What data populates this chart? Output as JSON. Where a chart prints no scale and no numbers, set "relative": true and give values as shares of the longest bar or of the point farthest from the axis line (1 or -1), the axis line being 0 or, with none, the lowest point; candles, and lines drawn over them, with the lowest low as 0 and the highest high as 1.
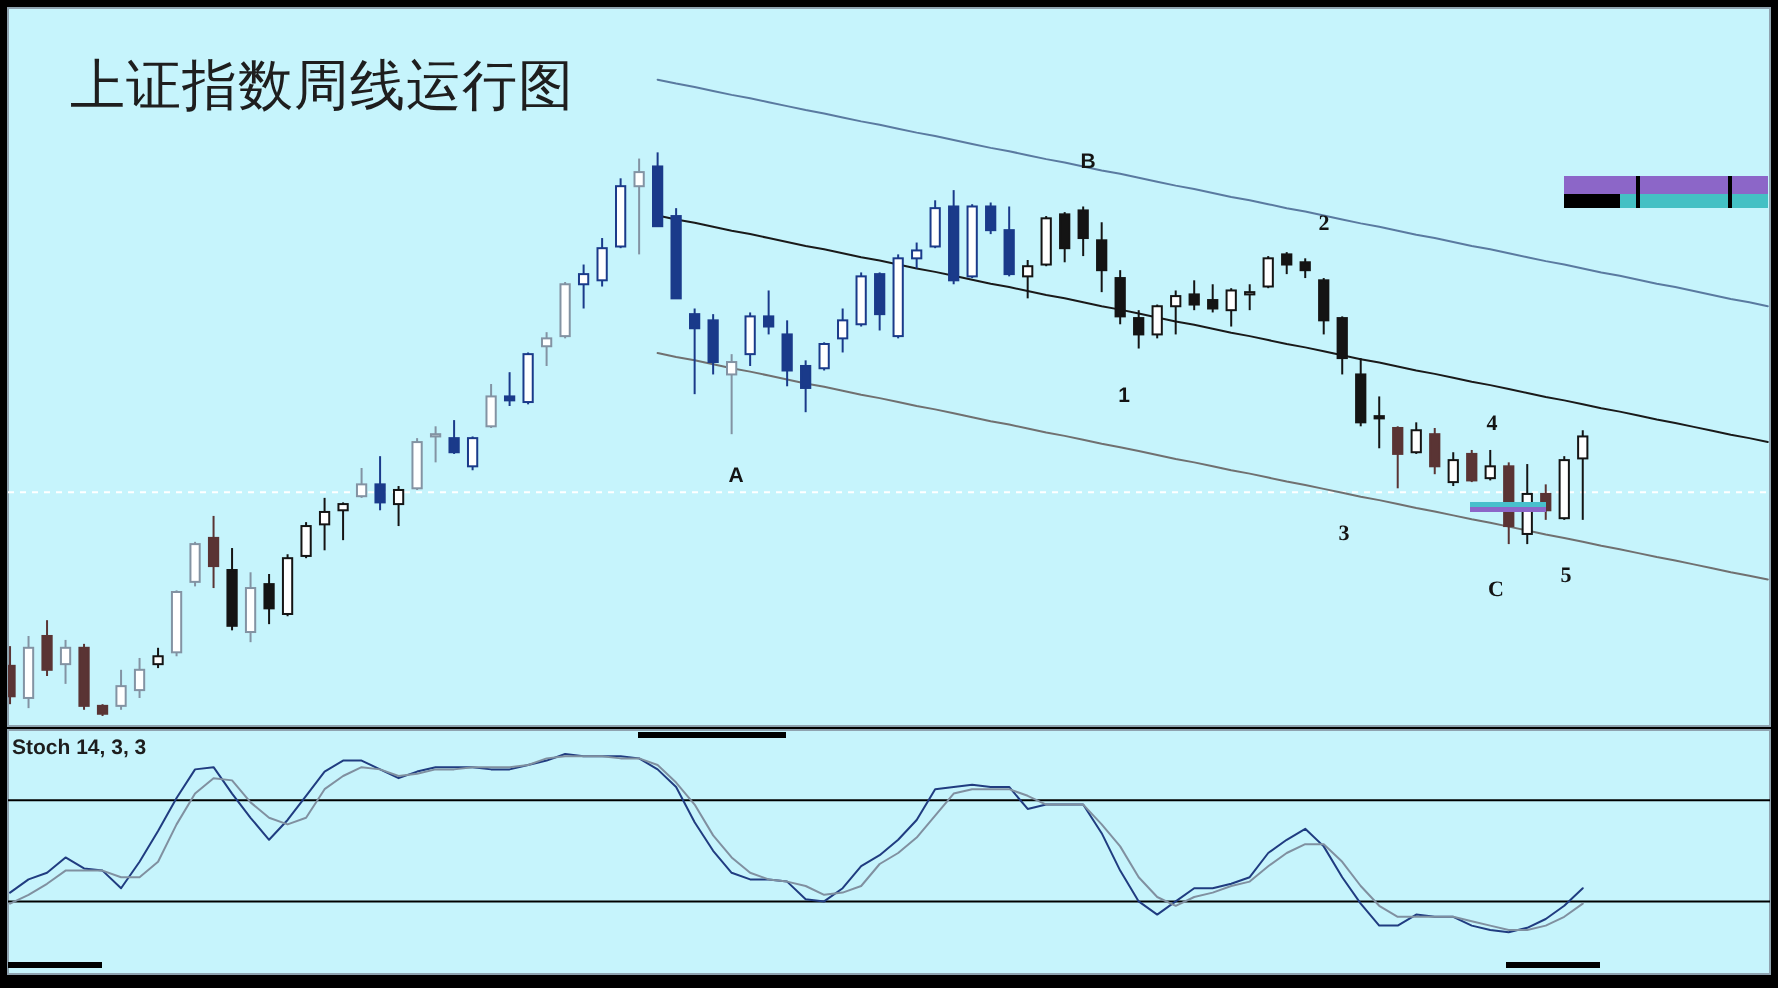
{
  "chart_data": [
    {
      "type": "candlestick",
      "title": "上证指数周线运行图",
      "relative": true,
      "categories": [
        null,
        null,
        null,
        null,
        null,
        null,
        null,
        null,
        null,
        null,
        null,
        null,
        null,
        null,
        null,
        null,
        null,
        null,
        null,
        null,
        null,
        null,
        null,
        null,
        null,
        null,
        null,
        null,
        null,
        null,
        null,
        null,
        null,
        null,
        null,
        null,
        null,
        null,
        null,
        null,
        null,
        null,
        null,
        null,
        null,
        null,
        null,
        null,
        null,
        null,
        null,
        null,
        null,
        null,
        null,
        null,
        null,
        null,
        null,
        null,
        null,
        null,
        null,
        null,
        null,
        null,
        null,
        null,
        null,
        null,
        null,
        null,
        null,
        null,
        null,
        null,
        null,
        null,
        null,
        null,
        null,
        null,
        null,
        null,
        null,
        null,
        null,
        null,
        null,
        null,
        null,
        null,
        null,
        null,
        null,
        null
      ],
      "ohlc": [
        [
          0.089,
          0.124,
          0.021,
          0.035
        ],
        [
          0.032,
          0.142,
          0.014,
          0.121
        ],
        [
          0.142,
          0.17,
          0.071,
          0.082
        ],
        [
          0.092,
          0.135,
          0.057,
          0.121
        ],
        [
          0.121,
          0.128,
          0.011,
          0.018
        ],
        [
          0.018,
          0.021,
          0,
          0.004
        ],
        [
          0.018,
          0.082,
          0.011,
          0.053
        ],
        [
          0.046,
          0.103,
          0.032,
          0.082
        ],
        [
          0.092,
          0.121,
          0.085,
          0.106
        ],
        [
          0.113,
          0.223,
          0.106,
          0.22
        ],
        [
          0.238,
          0.309,
          0.23,
          0.305
        ],
        [
          0.316,
          0.355,
          0.227,
          0.266
        ],
        [
          0.259,
          0.298,
          0.152,
          0.16
        ],
        [
          0.149,
          0.255,
          0.131,
          0.227
        ],
        [
          0.234,
          0.252,
          0.163,
          0.191
        ],
        [
          0.181,
          0.287,
          0.177,
          0.28
        ],
        [
          0.284,
          0.344,
          0.28,
          0.337
        ],
        [
          0.34,
          0.387,
          0.294,
          0.362
        ],
        [
          0.365,
          0.379,
          0.312,
          0.376
        ],
        [
          0.39,
          0.44,
          0.387,
          0.411
        ],
        [
          0.411,
          0.461,
          0.365,
          0.379
        ],
        [
          0.376,
          0.408,
          0.337,
          0.401
        ],
        [
          0.404,
          0.493,
          0.401,
          0.486
        ],
        [
          0.496,
          0.514,
          0.45,
          0.5
        ],
        [
          0.493,
          0.525,
          0.465,
          0.468
        ],
        [
          0.443,
          0.496,
          0.436,
          0.493
        ],
        [
          0.514,
          0.589,
          0.511,
          0.567
        ],
        [
          0.567,
          0.61,
          0.55,
          0.56
        ],
        [
          0.557,
          0.645,
          0.553,
          0.642
        ],
        [
          0.656,
          0.681,
          0.621,
          0.67
        ],
        [
          0.674,
          0.77,
          0.67,
          0.766
        ],
        [
          0.766,
          0.801,
          0.723,
          0.784
        ],
        [
          0.773,
          0.848,
          0.762,
          0.83
        ],
        [
          0.833,
          0.954,
          0.83,
          0.94
        ],
        [
          0.94,
          0.989,
          0.819,
          0.965
        ],
        [
          0.975,
          1,
          0.869,
          0.869
        ],
        [
          0.887,
          0.901,
          0.741,
          0.741
        ],
        [
          0.713,
          0.723,
          0.571,
          0.688
        ],
        [
          0.702,
          0.713,
          0.606,
          0.628
        ],
        [
          0.606,
          0.642,
          0.5,
          0.628
        ],
        [
          0.642,
          0.716,
          0.621,
          0.709
        ],
        [
          0.709,
          0.755,
          0.677,
          0.691
        ],
        [
          0.677,
          0.702,
          0.585,
          0.613
        ],
        [
          0.621,
          0.631,
          0.539,
          0.582
        ],
        [
          0.617,
          0.663,
          0.613,
          0.66
        ],
        [
          0.67,
          0.723,
          0.645,
          0.702
        ],
        [
          0.695,
          0.787,
          0.691,
          0.78
        ],
        [
          0.784,
          0.787,
          0.684,
          0.713
        ],
        [
          0.674,
          0.819,
          0.67,
          0.812
        ],
        [
          0.812,
          0.84,
          0.794,
          0.826
        ],
        [
          0.833,
          0.915,
          0.83,
          0.901
        ],
        [
          0.904,
          0.933,
          0.766,
          0.773
        ],
        [
          0.78,
          0.908,
          0.777,
          0.904
        ],
        [
          0.904,
          0.911,
          0.855,
          0.862
        ],
        [
          0.862,
          0.904,
          0.78,
          0.784
        ],
        [
          0.78,
          0.809,
          0.741,
          0.798
        ],
        [
          0.801,
          0.887,
          0.798,
          0.883
        ],
        [
          0.89,
          0.894,
          0.805,
          0.83
        ],
        [
          0.897,
          0.904,
          0.816,
          0.848
        ],
        [
          0.844,
          0.876,
          0.752,
          0.791
        ],
        [
          0.777,
          0.791,
          0.695,
          0.709
        ],
        [
          0.706,
          0.72,
          0.652,
          0.677
        ],
        [
          0.677,
          0.73,
          0.67,
          0.727
        ],
        [
          0.727,
          0.755,
          0.677,
          0.745
        ],
        [
          0.748,
          0.773,
          0.72,
          0.73
        ],
        [
          0.738,
          0.766,
          0.716,
          0.723
        ],
        [
          0.72,
          0.759,
          0.691,
          0.755
        ],
        [
          0.748,
          0.766,
          0.72,
          0.752
        ],
        [
          0.762,
          0.816,
          0.759,
          0.812
        ],
        [
          0.819,
          0.823,
          0.784,
          0.801
        ],
        [
          0.805,
          0.812,
          0.777,
          0.791
        ],
        [
          0.773,
          0.777,
          0.677,
          0.702
        ],
        [
          0.706,
          0.709,
          0.606,
          0.635
        ],
        [
          0.606,
          0.635,
          0.514,
          0.521
        ],
        [
          0.532,
          0.567,
          0.475,
          0.528
        ],
        [
          0.511,
          0.514,
          0.404,
          0.465
        ],
        [
          0.468,
          0.521,
          0.465,
          0.507
        ],
        [
          0.5,
          0.511,
          0.429,
          0.443
        ],
        [
          0.415,
          0.468,
          0.408,
          0.454
        ],
        [
          0.465,
          0.472,
          0.415,
          0.418
        ],
        [
          0.422,
          0.472,
          0.418,
          0.443
        ],
        [
          0.443,
          0.45,
          0.305,
          0.337
        ],
        [
          0.323,
          0.447,
          0.305,
          0.394
        ],
        [
          0.394,
          0.411,
          0.348,
          0.365
        ],
        [
          0.351,
          0.461,
          0.348,
          0.454
        ],
        [
          0.457,
          0.507,
          0.348,
          0.496
        ],
        null,
        null,
        null,
        null,
        null,
        null,
        null,
        null,
        null,
        null
      ],
      "colors": [
        "#5a3434",
        "#8393a3",
        "#5a3434",
        "#8393a3",
        "#5a3434",
        "#5a3434",
        "#8393a3",
        "#8393a3",
        "#141414",
        "#8393a3",
        "#8393a3",
        "#5a3434",
        "#141414",
        "#8393a3",
        "#141414",
        "#141414",
        "#141414",
        "#141414",
        "#141414",
        "#8393a3",
        "#1a3a8a",
        "#141414",
        "#8393a3",
        "#8393a3",
        "#1a3a8a",
        "#1a3a8a",
        "#8393a3",
        "#1a3a8a",
        "#1a3a8a",
        "#8393a3",
        "#8393a3",
        "#1a3a8a",
        "#1a3a8a",
        "#1a3a8a",
        "#8393a3",
        "#1a3a8a",
        "#1a3a8a",
        "#1a3a8a",
        "#1a3a8a",
        "#8393a3",
        "#1a3a8a",
        "#1a3a8a",
        "#1a3a8a",
        "#1a3a8a",
        "#1a3a8a",
        "#1a3a8a",
        "#1a3a8a",
        "#1a3a8a",
        "#1a3a8a",
        "#1a3a8a",
        "#1a3a8a",
        "#1a3a8a",
        "#1a3a8a",
        "#1a3a8a",
        "#1a3a8a",
        "#141414",
        "#141414",
        "#141414",
        "#141414",
        "#141414",
        "#141414",
        "#141414",
        "#141414",
        "#141414",
        "#141414",
        "#141414",
        "#141414",
        "#141414",
        "#141414",
        "#141414",
        "#141414",
        "#141414",
        "#141414",
        "#141414",
        "#141414",
        "#5a3434",
        "#141414",
        "#5a3434",
        "#141414",
        "#5a3434",
        "#141414",
        "#5a3434",
        "#141414",
        "#5a3434",
        "#141414",
        "#141414",
        null,
        null,
        null,
        null,
        null,
        null,
        null,
        null,
        null,
        null
      ],
      "series": [
        {
          "type": "line",
          "color": "#5a7aa0",
          "values": [
            null,
            null,
            null,
            null,
            null,
            null,
            null,
            null,
            null,
            null,
            null,
            null,
            null,
            null,
            null,
            null,
            null,
            null,
            null,
            null,
            null,
            null,
            null,
            null,
            null,
            null,
            null,
            null,
            null,
            null,
            null,
            null,
            null,
            null,
            null,
            1.129,
            1.122,
            1.116,
            1.109,
            1.102,
            1.096,
            1.089,
            1.082,
            1.075,
            1.069,
            1.062,
            1.055,
            1.049,
            1.042,
            1.035,
            1.029,
            1.022,
            1.015,
            1.008,
            1.002,
            0.995,
            0.988,
            0.982,
            0.975,
            0.968,
            0.962,
            0.955,
            0.948,
            0.941,
            0.935,
            0.928,
            0.921,
            0.915,
            0.908,
            0.901,
            0.895,
            0.888,
            0.881,
            0.874,
            0.868,
            0.861,
            0.854,
            0.848,
            0.841,
            0.834,
            0.828,
            0.821,
            0.814,
            0.807,
            0.801,
            0.794,
            0.787,
            0.781,
            0.774,
            0.767,
            0.761,
            0.754,
            0.747,
            0.74,
            0.734,
            0.727
          ]
        },
        {
          "type": "line",
          "color": "#1a1a1a",
          "values": [
            null,
            null,
            null,
            null,
            null,
            null,
            null,
            null,
            null,
            null,
            null,
            null,
            null,
            null,
            null,
            null,
            null,
            null,
            null,
            null,
            null,
            null,
            null,
            null,
            null,
            null,
            null,
            null,
            null,
            null,
            null,
            null,
            null,
            null,
            null,
            0.888,
            0.881,
            0.875,
            0.868,
            0.861,
            0.855,
            0.848,
            0.841,
            0.834,
            0.828,
            0.821,
            0.814,
            0.808,
            0.801,
            0.794,
            0.788,
            0.781,
            0.774,
            0.767,
            0.761,
            0.754,
            0.747,
            0.741,
            0.734,
            0.727,
            0.721,
            0.714,
            0.707,
            0.7,
            0.694,
            0.687,
            0.68,
            0.674,
            0.667,
            0.66,
            0.654,
            0.647,
            0.64,
            0.633,
            0.627,
            0.62,
            0.613,
            0.607,
            0.6,
            0.593,
            0.587,
            0.58,
            0.573,
            0.566,
            0.56,
            0.553,
            0.546,
            0.54,
            0.533,
            0.526,
            0.52,
            0.513,
            0.506,
            0.499,
            0.493,
            0.486
          ]
        },
        {
          "type": "line",
          "color": "#707070",
          "values": [
            null,
            null,
            null,
            null,
            null,
            null,
            null,
            null,
            null,
            null,
            null,
            null,
            null,
            null,
            null,
            null,
            null,
            null,
            null,
            null,
            null,
            null,
            null,
            null,
            null,
            null,
            null,
            null,
            null,
            null,
            null,
            null,
            null,
            null,
            null,
            0.644,
            0.637,
            0.631,
            0.624,
            0.617,
            0.611,
            0.604,
            0.597,
            0.59,
            0.584,
            0.577,
            0.57,
            0.564,
            0.557,
            0.55,
            0.544,
            0.537,
            0.53,
            0.523,
            0.517,
            0.51,
            0.503,
            0.497,
            0.49,
            0.483,
            0.477,
            0.47,
            0.463,
            0.456,
            0.45,
            0.443,
            0.436,
            0.43,
            0.423,
            0.416,
            0.41,
            0.403,
            0.396,
            0.389,
            0.383,
            0.376,
            0.369,
            0.363,
            0.356,
            0.349,
            0.343,
            0.336,
            0.329,
            0.322,
            0.316,
            0.309,
            0.302,
            0.296,
            0.289,
            0.282,
            0.276,
            0.269,
            0.262,
            0.255,
            0.249,
            0.242
          ]
        }
      ],
      "ref_lines": [
        {
          "axis": "y",
          "value": 0.397,
          "color": "#ffffff",
          "line_style": "dashed"
        }
      ],
      "annotations": [
        "A",
        "B",
        "1",
        "2",
        "3",
        "4",
        "C",
        "5"
      ]
    },
    {
      "type": "line",
      "title": "Stoch 14, 3, 3",
      "relative": true,
      "categories": [
        null,
        null,
        null,
        null,
        null,
        null,
        null,
        null,
        null,
        null,
        null,
        null,
        null,
        null,
        null,
        null,
        null,
        null,
        null,
        null,
        null,
        null,
        null,
        null,
        null,
        null,
        null,
        null,
        null,
        null,
        null,
        null,
        null,
        null,
        null,
        null,
        null,
        null,
        null,
        null,
        null,
        null,
        null,
        null,
        null,
        null,
        null,
        null,
        null,
        null,
        null,
        null,
        null,
        null,
        null,
        null,
        null,
        null,
        null,
        null,
        null,
        null,
        null,
        null,
        null,
        null,
        null,
        null,
        null,
        null,
        null,
        null,
        null,
        null,
        null,
        null,
        null,
        null,
        null,
        null,
        null,
        null,
        null,
        null,
        null,
        null,
        null,
        null,
        null,
        null,
        null,
        null,
        null,
        null,
        null,
        null
      ],
      "series": [
        {
          "color": "#203c80",
          "values": [
            0.37,
            0.43,
            0.46,
            0.53,
            0.48,
            0.47,
            0.39,
            0.51,
            0.65,
            0.8,
            0.93,
            0.94,
            0.82,
            0.71,
            0.61,
            0.7,
            0.81,
            0.92,
            0.97,
            0.97,
            0.93,
            0.89,
            0.92,
            0.94,
            0.94,
            0.94,
            0.93,
            0.93,
            0.95,
            0.97,
            1,
            0.99,
            0.99,
            0.99,
            0.98,
            0.93,
            0.85,
            0.69,
            0.56,
            0.46,
            0.43,
            0.43,
            0.42,
            0.34,
            0.33,
            0.39,
            0.49,
            0.54,
            0.61,
            0.7,
            0.84,
            0.85,
            0.86,
            0.85,
            0.85,
            0.75,
            0.77,
            0.77,
            0.77,
            0.64,
            0.47,
            0.33,
            0.27,
            0.33,
            0.39,
            0.39,
            0.41,
            0.44,
            0.55,
            0.61,
            0.66,
            0.58,
            0.44,
            0.32,
            0.22,
            0.22,
            0.27,
            0.26,
            0.26,
            0.22,
            0.2,
            0.19,
            0.21,
            0.25,
            0.31,
            0.39,
            null,
            null,
            null,
            null,
            null,
            null,
            null,
            null,
            null,
            null
          ]
        },
        {
          "color": "#8090a0",
          "values": [
            0.32,
            0.36,
            0.41,
            0.47,
            0.47,
            0.47,
            0.44,
            0.44,
            0.51,
            0.68,
            0.82,
            0.89,
            0.88,
            0.78,
            0.71,
            0.68,
            0.71,
            0.84,
            0.9,
            0.94,
            0.93,
            0.9,
            0.91,
            0.93,
            0.93,
            0.94,
            0.94,
            0.94,
            0.95,
            0.98,
            0.99,
            0.99,
            0.99,
            0.98,
            0.98,
            0.95,
            0.87,
            0.77,
            0.63,
            0.53,
            0.46,
            0.43,
            0.42,
            0.4,
            0.36,
            0.37,
            0.4,
            0.5,
            0.55,
            0.62,
            0.72,
            0.82,
            0.84,
            0.84,
            0.84,
            0.81,
            0.77,
            0.77,
            0.77,
            0.68,
            0.58,
            0.44,
            0.35,
            0.31,
            0.35,
            0.37,
            0.4,
            0.42,
            0.49,
            0.55,
            0.59,
            0.59,
            0.51,
            0.4,
            0.31,
            0.26,
            0.26,
            0.26,
            0.26,
            0.24,
            0.22,
            0.2,
            0.2,
            0.22,
            0.26,
            0.32,
            null,
            null,
            null,
            null,
            null,
            null,
            null,
            null,
            null,
            null
          ]
        }
      ],
      "ref_lines": [
        {
          "axis": "y",
          "value": 0.79,
          "color": "#000000"
        },
        {
          "axis": "y",
          "value": 0.33,
          "color": "#000000"
        }
      ]
    }
  ]
}
